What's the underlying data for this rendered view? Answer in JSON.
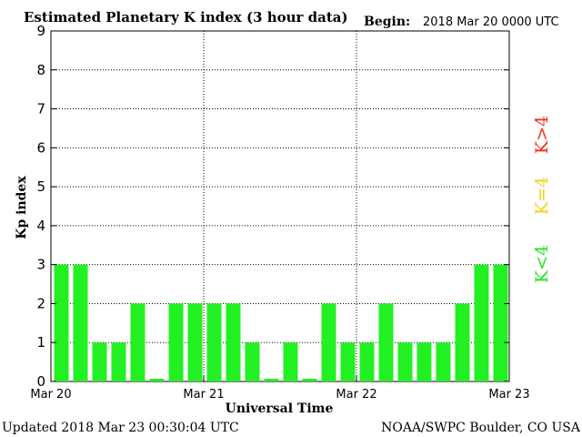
{
  "chart_data": {
    "type": "bar",
    "title": "Estimated Planetary K index (3 hour data)",
    "begin_label": "Begin:",
    "begin_value": "2018 Mar 20 0000 UTC",
    "xlabel": "Universal Time",
    "ylabel": "Kp index",
    "x_tick_labels": [
      "Mar 20",
      "Mar 21",
      "Mar 22",
      "Mar 23"
    ],
    "y_ticks": [
      "0",
      "1",
      "2",
      "3",
      "4",
      "5",
      "6",
      "7",
      "8",
      "9"
    ],
    "ylim": [
      0,
      9
    ],
    "grid": true,
    "values": [
      3,
      3,
      1,
      1,
      2,
      0.07,
      2,
      2,
      2,
      2,
      1,
      0.07,
      1,
      0.07,
      2,
      1,
      1,
      2,
      1,
      1,
      1,
      2,
      3,
      3
    ],
    "legend": [
      {
        "label": "K<4",
        "color": "#22e622"
      },
      {
        "label": "K=4",
        "color": "#f2d21a"
      },
      {
        "label": "K>4",
        "color": "#f0301e"
      }
    ],
    "bar_color": "#22f022"
  },
  "footer": {
    "updated": "Updated 2018 Mar 23 00:30:04 UTC",
    "credit": "NOAA/SWPC Boulder, CO USA"
  }
}
